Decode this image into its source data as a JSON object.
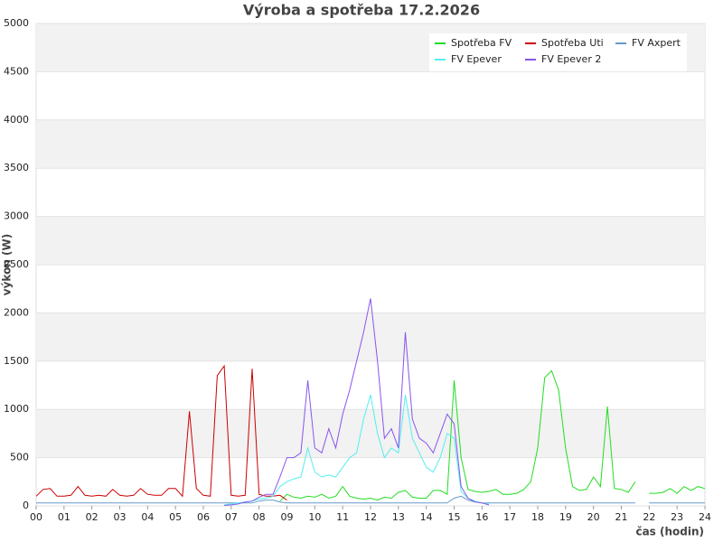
{
  "chart_data": {
    "type": "line",
    "title": "Výroba a spotřeba 17.2.2026",
    "x_label": "čas (hodin)",
    "y_label": "výkon (W)",
    "x": [
      0,
      0.25,
      0.5,
      0.75,
      1,
      1.25,
      1.5,
      1.75,
      2,
      2.25,
      2.5,
      2.75,
      3,
      3.25,
      3.5,
      3.75,
      4,
      4.25,
      4.5,
      4.75,
      5,
      5.25,
      5.5,
      5.75,
      6,
      6.25,
      6.5,
      6.75,
      7,
      7.25,
      7.5,
      7.75,
      8,
      8.25,
      8.5,
      8.75,
      9,
      9.25,
      9.5,
      9.75,
      10,
      10.25,
      10.5,
      10.75,
      11,
      11.25,
      11.5,
      11.75,
      12,
      12.25,
      12.5,
      12.75,
      13,
      13.25,
      13.5,
      13.75,
      14,
      14.25,
      14.5,
      14.75,
      15,
      15.25,
      15.5,
      15.75,
      16,
      16.25,
      16.5,
      16.75,
      17,
      17.25,
      17.5,
      17.75,
      18,
      18.25,
      18.5,
      18.75,
      19,
      19.25,
      19.5,
      19.75,
      20,
      20.25,
      20.5,
      20.75,
      21,
      21.25,
      21.5,
      21.75,
      22,
      22.25,
      22.5,
      22.75,
      23,
      23.25,
      23.5,
      23.75,
      24
    ],
    "series": [
      {
        "name": "Spotřeba FV",
        "color": "#22dd22",
        "values": [
          null,
          null,
          null,
          null,
          null,
          null,
          null,
          null,
          null,
          null,
          null,
          null,
          null,
          null,
          null,
          null,
          null,
          null,
          null,
          null,
          null,
          null,
          null,
          null,
          null,
          null,
          null,
          null,
          null,
          null,
          null,
          null,
          null,
          null,
          null,
          50,
          120,
          90,
          80,
          100,
          90,
          120,
          80,
          100,
          200,
          100,
          80,
          70,
          80,
          60,
          90,
          80,
          140,
          160,
          90,
          80,
          80,
          160,
          160,
          120,
          1300,
          500,
          170,
          150,
          140,
          150,
          170,
          120,
          120,
          130,
          170,
          250,
          600,
          1330,
          1400,
          1200,
          600,
          200,
          160,
          170,
          300,
          200,
          1030,
          180,
          170,
          140,
          250,
          null,
          130,
          130,
          140,
          180,
          130,
          200,
          160,
          200,
          180
        ]
      },
      {
        "name": "Spotřeba Uti",
        "color": "#cc0000",
        "values": [
          100,
          170,
          180,
          100,
          100,
          110,
          200,
          110,
          100,
          110,
          100,
          170,
          110,
          100,
          110,
          180,
          120,
          110,
          110,
          180,
          180,
          100,
          980,
          180,
          110,
          100,
          1350,
          1450,
          110,
          100,
          110,
          1420,
          120,
          100,
          100,
          110,
          60,
          null,
          null,
          null,
          null,
          null,
          null,
          null,
          null,
          null,
          null,
          null,
          null,
          null,
          null,
          null,
          null,
          null,
          null,
          null,
          null,
          null,
          null,
          null,
          null,
          null,
          null,
          null,
          null,
          null,
          null,
          null,
          null,
          null,
          null,
          null,
          null,
          null,
          null,
          null,
          null,
          null,
          null,
          null,
          null,
          null,
          null,
          null,
          null,
          null,
          null,
          null,
          null,
          null,
          null,
          null,
          null,
          null,
          null,
          null,
          null
        ]
      },
      {
        "name": "FV Axpert",
        "color": "#6699cc",
        "values": [
          30,
          30,
          30,
          30,
          30,
          30,
          30,
          30,
          30,
          30,
          30,
          30,
          30,
          30,
          30,
          30,
          30,
          30,
          30,
          30,
          30,
          30,
          30,
          30,
          30,
          30,
          30,
          30,
          30,
          30,
          30,
          30,
          50,
          60,
          60,
          40,
          30,
          30,
          30,
          30,
          30,
          30,
          30,
          30,
          30,
          30,
          30,
          30,
          30,
          30,
          30,
          30,
          30,
          30,
          30,
          30,
          30,
          30,
          30,
          30,
          80,
          100,
          60,
          40,
          30,
          30,
          30,
          30,
          30,
          30,
          30,
          30,
          30,
          30,
          30,
          30,
          30,
          30,
          30,
          30,
          30,
          30,
          30,
          30,
          30,
          30,
          30,
          null,
          30,
          30,
          30,
          30,
          30,
          30,
          30,
          30,
          30
        ]
      },
      {
        "name": "FV Epever",
        "color": "#55eeee",
        "values": [
          null,
          null,
          null,
          null,
          null,
          null,
          null,
          null,
          null,
          null,
          null,
          null,
          null,
          null,
          null,
          null,
          null,
          null,
          null,
          null,
          null,
          null,
          null,
          null,
          null,
          null,
          null,
          10,
          20,
          30,
          40,
          50,
          70,
          80,
          100,
          200,
          250,
          280,
          300,
          600,
          350,
          300,
          320,
          300,
          400,
          500,
          550,
          900,
          1150,
          750,
          500,
          600,
          550,
          1150,
          700,
          550,
          400,
          350,
          500,
          750,
          700,
          150,
          80,
          50,
          30,
          20,
          null,
          null,
          null,
          null,
          null,
          null,
          null,
          null,
          null,
          null,
          null,
          null,
          null,
          null,
          null,
          null,
          null,
          null,
          null,
          null,
          null,
          null,
          null,
          null,
          null,
          null,
          null,
          null,
          null,
          null,
          null
        ]
      },
      {
        "name": "FV Epever 2",
        "color": "#8855ee",
        "values": [
          null,
          null,
          null,
          null,
          null,
          null,
          null,
          null,
          null,
          null,
          null,
          null,
          null,
          null,
          null,
          null,
          null,
          null,
          null,
          null,
          null,
          null,
          null,
          null,
          null,
          null,
          null,
          5,
          10,
          20,
          40,
          50,
          90,
          120,
          120,
          300,
          500,
          500,
          550,
          1300,
          600,
          550,
          800,
          600,
          950,
          1200,
          1500,
          1800,
          2150,
          1500,
          700,
          800,
          600,
          1800,
          900,
          700,
          650,
          550,
          750,
          950,
          850,
          200,
          80,
          40,
          30,
          10,
          null,
          null,
          null,
          null,
          null,
          null,
          null,
          null,
          null,
          null,
          null,
          null,
          null,
          null,
          null,
          null,
          null,
          null,
          null,
          null,
          null,
          null,
          null,
          null,
          null,
          null,
          null,
          null,
          null,
          null,
          null
        ]
      }
    ],
    "xlim": [
      0,
      24
    ],
    "ylim": [
      0,
      5000
    ],
    "xticks": [
      {
        "value": 0,
        "label": "00"
      },
      {
        "value": 1,
        "label": "01"
      },
      {
        "value": 2,
        "label": "02"
      },
      {
        "value": 3,
        "label": "03"
      },
      {
        "value": 4,
        "label": "04"
      },
      {
        "value": 5,
        "label": "05"
      },
      {
        "value": 6,
        "label": "06"
      },
      {
        "value": 7,
        "label": "07"
      },
      {
        "value": 8,
        "label": "08"
      },
      {
        "value": 9,
        "label": "09"
      },
      10,
      11,
      12,
      13,
      14,
      15,
      16,
      17,
      18,
      19,
      20,
      21,
      22,
      23,
      24
    ],
    "yticks": [
      0,
      500,
      1000,
      1500,
      2000,
      2500,
      3000,
      3500,
      4000,
      4500,
      5000
    ],
    "grid": true,
    "bands": true,
    "legend": "upper right"
  }
}
